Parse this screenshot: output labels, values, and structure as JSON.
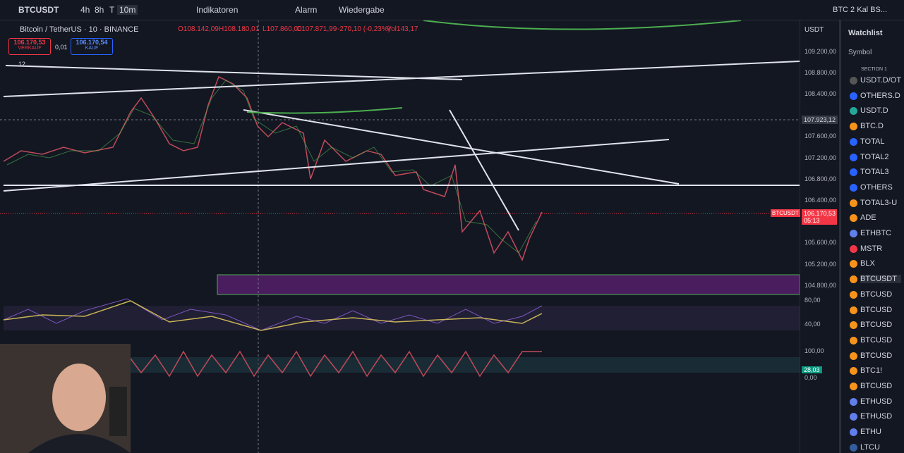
{
  "toolbar": {
    "symbol": "BTCUSDT",
    "intervals": [
      "4h",
      "8h",
      "T",
      "10m"
    ],
    "indicators": "Indikatoren",
    "alarm": "Alarm",
    "replay": "Wiedergabe",
    "layout_name": "BTC 2 Kal BS..."
  },
  "legend": {
    "title": "Bitcoin / TetherUS · 10 · BINANCE",
    "ohlc": [
      "O108.142,09",
      "H108.180,01",
      "L107.860,00",
      "C107.871,99",
      "-270,10 (-0,23%)",
      "Vol143,17"
    ],
    "sell_price": "106.170,53",
    "sell_label": "VERKAUF",
    "spread": "0,01",
    "buy_price": "106.170,54",
    "buy_label": "KAUF",
    "indicator_count": "12"
  },
  "price_axis": {
    "currency": "USDT",
    "labels": [
      "109.200,00",
      "108.800,00",
      "108.400,00",
      "107.600,00",
      "107.200,00",
      "106.800,00",
      "106.400,00",
      "105.600,00",
      "105.200,00",
      "104.800,00"
    ],
    "crosshair_price": "107.923,12",
    "symbol_tag": "BTCUSDT",
    "last_price": "106.170,53",
    "countdown": "05:13"
  },
  "rsi_axis": [
    "80,00",
    "40,00"
  ],
  "stoch_axis": {
    "labels": [
      "100,00",
      "0,00"
    ],
    "current": "28,03"
  },
  "watchlist": {
    "title": "Watchlist",
    "column": "Symbol",
    "section": "SECTION 1",
    "items": [
      "USDT.D/OT",
      "OTHERS.D",
      "USDT.D",
      "BTC.D",
      "TOTAL",
      "TOTAL2",
      "TOTAL3",
      "OTHERS",
      "TOTAL3-U",
      "ADE",
      "ETHBTC",
      "MSTR",
      "BLX",
      "BTCUSDT",
      "BTCUSD",
      "BTCUSD",
      "BTCUSD",
      "BTCUSD",
      "BTCUSD",
      "BTC1!",
      "BTCUSD",
      "ETHUSD",
      "ETHUSD",
      "ETHU",
      "LTCU"
    ]
  }
}
